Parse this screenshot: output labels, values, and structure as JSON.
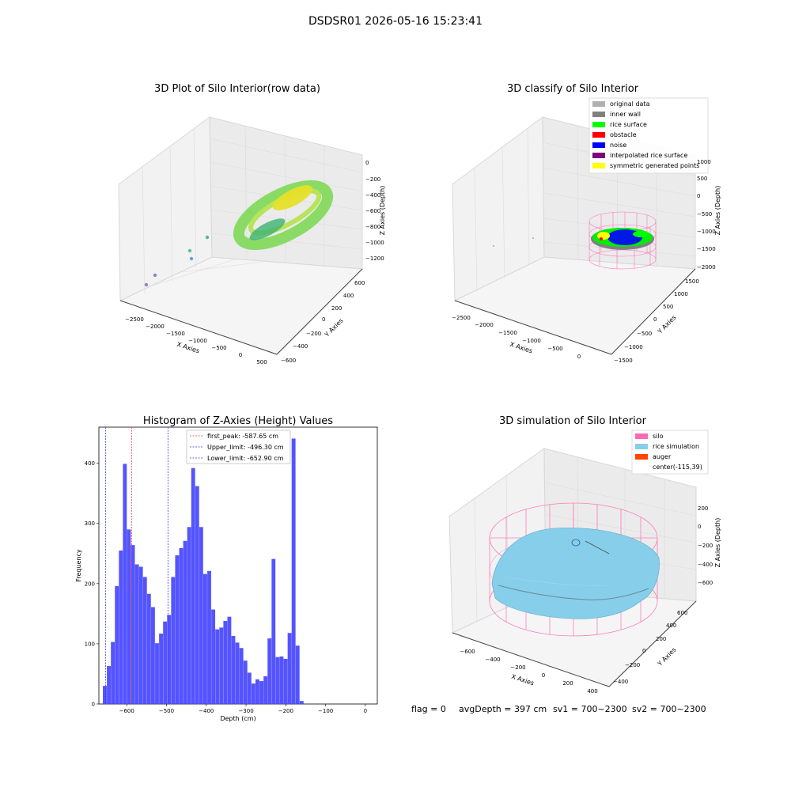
{
  "suptitle": "DSDSR01 2026-05-16 15:23:41",
  "footer": {
    "flag": "flag = 0",
    "avg_depth": "avgDepth = 397 cm",
    "sv1": "sv1 = 700~2300",
    "sv2": "sv2 = 700~2300"
  },
  "chart_data": [
    {
      "type": "scatter",
      "title": "3D Plot of Silo Interior(row data)",
      "xlabel": "X Axies",
      "ylabel": "Y Axies",
      "zlabel": "Z Axies (Depth)",
      "x_ticks": [
        "−2500",
        "−2000",
        "−1500",
        "−1000",
        "−500",
        "0",
        "500"
      ],
      "y_ticks": [
        "−600",
        "−400",
        "−200",
        "0",
        "200",
        "400",
        "600"
      ],
      "z_ticks": [
        "−1200",
        "−1000",
        "−800",
        "−600",
        "−400",
        "−200",
        "0"
      ],
      "colors": {
        "ring": "#7ed957",
        "core": "#3cb371",
        "hi": "#e6e02a",
        "outlier": "#6a9fd4"
      }
    },
    {
      "type": "scatter",
      "title": "3D classify of Silo Interior",
      "xlabel": "X Axies",
      "ylabel": "Y Axies",
      "zlabel": "Z Axies (Depth)",
      "x_ticks": [
        "−2500",
        "−2000",
        "−1500",
        "−1000",
        "−500",
        "0"
      ],
      "y_ticks": [
        "−1500",
        "−1000",
        "−500",
        "0",
        "500",
        "1000",
        "1500"
      ],
      "z_ticks": [
        "−2000",
        "−1500",
        "−1000",
        "−500",
        "0",
        "500",
        "1000"
      ],
      "legend": [
        {
          "label": "original data",
          "color": "#b0b0b0"
        },
        {
          "label": "inner wall",
          "color": "#808080"
        },
        {
          "label": "rice surface",
          "color": "#00ff00"
        },
        {
          "label": "obstacle",
          "color": "#ff0000"
        },
        {
          "label": "noise",
          "color": "#0000ff"
        },
        {
          "label": "interpolated rice surface",
          "color": "#800080"
        },
        {
          "label": "symmetric generated points",
          "color": "#ffff00"
        }
      ],
      "wire_color": "#ff69b4"
    },
    {
      "type": "bar",
      "title": "Histogram of Z-Axies (Height) Values",
      "xlabel": "Depth (cm)",
      "ylabel": "Frequency",
      "xlim": [
        -670,
        30
      ],
      "ylim": [
        0,
        460
      ],
      "x_ticks": [
        -600,
        -500,
        -400,
        -300,
        -200,
        -100,
        0
      ],
      "y_ticks": [
        0,
        100,
        200,
        300,
        400
      ],
      "bin_start": -660,
      "bin_width": 10.1,
      "values": [
        30,
        63,
        103,
        196,
        255,
        399,
        290,
        264,
        232,
        228,
        211,
        183,
        161,
        101,
        117,
        137,
        148,
        211,
        247,
        259,
        271,
        294,
        392,
        362,
        294,
        216,
        221,
        157,
        124,
        127,
        138,
        145,
        113,
        102,
        93,
        72,
        52,
        34,
        41,
        38,
        46,
        109,
        241,
        78,
        79,
        75,
        118,
        441,
        97,
        5
      ],
      "bar_color": "#4b4bff",
      "vlines": [
        {
          "label": "first_peak: -587.65 cm",
          "x": -587.65,
          "color": "#e8433b"
        },
        {
          "label": "Upper_limit: -496.30 cm",
          "x": -496.3,
          "color": "#3a3ad8"
        },
        {
          "label": "Lower_limit: -652.90 cm",
          "x": -652.9,
          "color": "#3a3ad8"
        }
      ]
    },
    {
      "type": "surface",
      "title": "3D simulation of Silo Interior",
      "xlabel": "X Axies",
      "ylabel": "Y Axies",
      "zlabel": "Z Axies (Depth)",
      "x_ticks": [
        "−600",
        "−400",
        "−200",
        "0",
        "200",
        "400"
      ],
      "y_ticks": [
        "−400",
        "−200",
        "0",
        "200",
        "400",
        "600"
      ],
      "z_ticks": [
        "−600",
        "−400",
        "−200",
        "0",
        "200"
      ],
      "legend": [
        {
          "label": "silo",
          "color": "#ff69b4"
        },
        {
          "label": "rice simulation",
          "color": "#87ceeb"
        },
        {
          "label": "auger",
          "color": "#ff4500"
        },
        {
          "label": "center(-115,39)",
          "color": ""
        }
      ]
    }
  ]
}
